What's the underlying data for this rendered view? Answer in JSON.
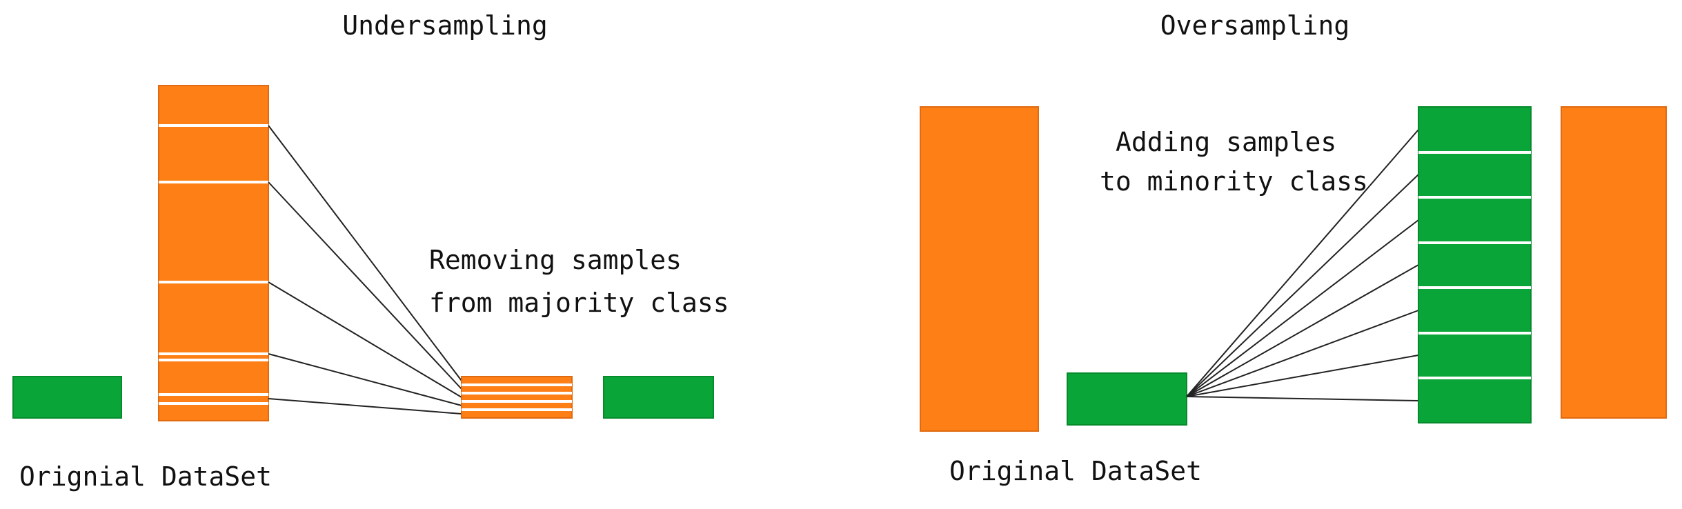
{
  "undersampling": {
    "title": "Undersampling",
    "note": [
      "Removing samples",
      "from majority class"
    ],
    "caption": "Orignial DataSet"
  },
  "oversampling": {
    "title": "Oversampling",
    "note": [
      "Adding samples",
      "to minority class"
    ],
    "caption": "Original DataSet"
  }
}
